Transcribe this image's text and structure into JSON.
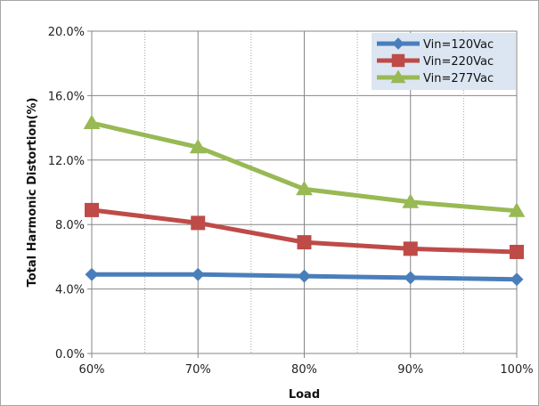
{
  "chart_data": {
    "type": "line",
    "title": "",
    "xlabel": "Load",
    "ylabel": "Total Harmonic Distortion(%)",
    "categories": [
      "60%",
      "70%",
      "80%",
      "90%",
      "100%"
    ],
    "ylim": [
      0,
      20
    ],
    "yticks": [
      0,
      4,
      8,
      12,
      16,
      20
    ],
    "ytick_labels": [
      "0.0%",
      "4.0%",
      "8.0%",
      "12.0%",
      "16.0%",
      "20.0%"
    ],
    "grid": true,
    "legend_position": "top-right",
    "series": [
      {
        "name": "Vin=120Vac",
        "color": "#4a7ebb",
        "marker": "diamond",
        "values": [
          4.9,
          4.9,
          4.8,
          4.7,
          4.6
        ]
      },
      {
        "name": "Vin=220Vac",
        "color": "#be4b48",
        "marker": "square",
        "values": [
          8.9,
          8.1,
          6.9,
          6.5,
          6.3
        ]
      },
      {
        "name": "Vin=277Vac",
        "color": "#98b954",
        "marker": "triangle",
        "values": [
          14.3,
          12.8,
          10.2,
          9.4,
          8.85
        ]
      }
    ]
  }
}
